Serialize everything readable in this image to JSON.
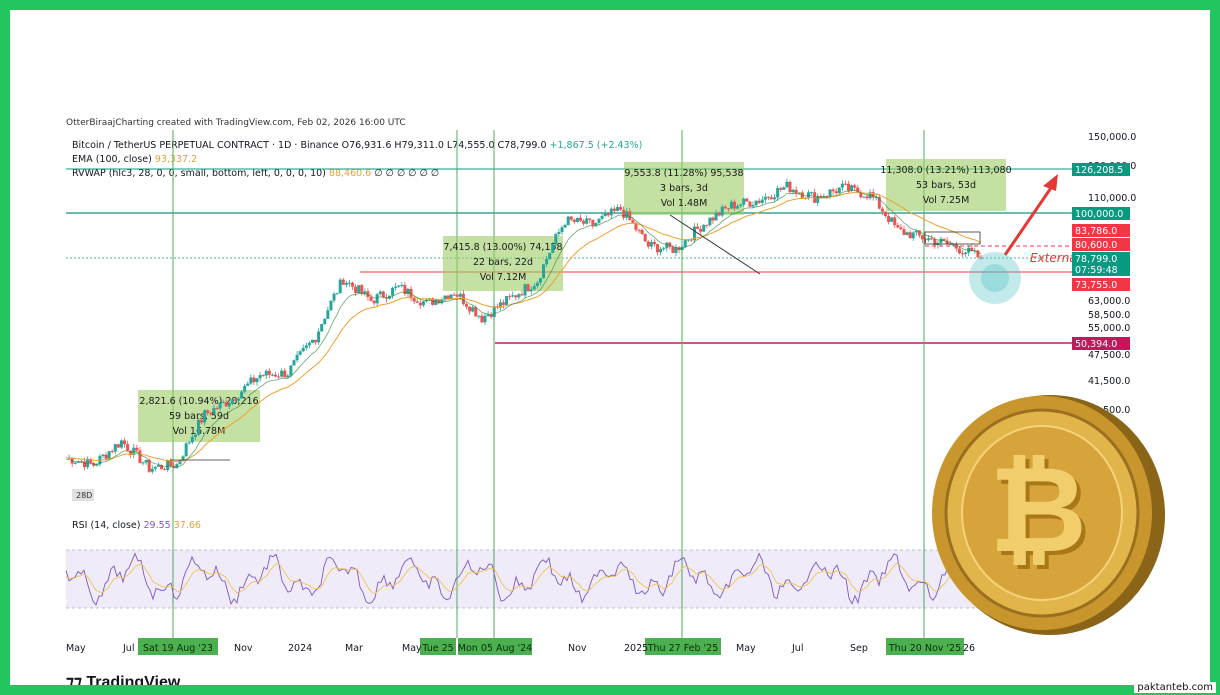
{
  "header": {
    "credit": "OtterBiraajCharting created with TradingView.com, Feb 02, 2026 16:00 UTC",
    "symbol": "Bitcoin / TetherUS PERPETUAL CONTRACT · 1D · Binance",
    "ohlc": {
      "o": "O76,931.6",
      "h": "H79,311.0",
      "l": "L74,555.0",
      "c": "C78,799.0",
      "chg": "+1,867.5 (+2.43%)"
    },
    "ema_label": "EMA (100, close)",
    "ema_value": "93,337.2",
    "rvwap_label": "RVWAP (hlc3, 28, 0, 0, small, bottom, left, 0, 0, 0, 10)",
    "rvwap_value": "88,460.6",
    "rvwap_tail": "∅ ∅ ∅ ∅ ∅ ∅",
    "rsi_label": "RSI (14, close)",
    "rsi_value": "29.55",
    "rsi_ma": "37.66"
  },
  "chart_data": {
    "type": "line",
    "price_axis_ticks": [
      "150,000.0",
      "130,000.0",
      "110,000.0",
      "63,000.0",
      "58,500.0",
      "55,000.0",
      "47,500.0",
      "41,500.0",
      "35,500.0"
    ],
    "price_badges": [
      {
        "label": "126,208.5",
        "color": "#089981"
      },
      {
        "label": "100,000.0",
        "color": "#089981"
      },
      {
        "label": "83,786.0",
        "color": "#f23645"
      },
      {
        "label": "80,600.0",
        "color": "#f23645"
      },
      {
        "label": "78,799.0",
        "color": "#089981"
      },
      {
        "label": "07:59:48",
        "color": "#089981"
      },
      {
        "label": "73,755.0",
        "color": "#f23645"
      },
      {
        "label": "50,394.0",
        "color": "#c2185b"
      }
    ],
    "time_axis_labels": [
      "May",
      "Jul",
      "Nov",
      "2024",
      "Mar",
      "May",
      "Nov",
      "2025",
      "May",
      "Jul",
      "Sep",
      "26"
    ],
    "highlighted_dates": [
      "Sat 19 Aug '23",
      "Tue 25",
      "Mon 05 Aug '24",
      "Thu 27 Feb '25",
      "Thu 20 Nov '25"
    ],
    "measurements": [
      {
        "line1": "2,821.6 (10.94%) 28,216",
        "line2": "59 bars, 59d",
        "line3": "Vol 16.78M"
      },
      {
        "line1": "7,415.8 (13.00%) 74,158",
        "line2": "22 bars, 22d",
        "line3": "Vol 7.12M"
      },
      {
        "line1": "9,553.8 (11.28%) 95,538",
        "line2": "3 bars, 3d",
        "line3": "Vol 1.48M"
      },
      {
        "line1": "11,308.0 (13.21%) 113,080",
        "line2": "53 bars, 53d",
        "line3": "Vol 7.25M"
      }
    ],
    "annotation": "External liq",
    "interval_badge": "28D",
    "price_path": [
      [
        "2023-05",
        27500
      ],
      [
        "2023-06",
        26500
      ],
      [
        "2023-07",
        30000
      ],
      [
        "2023-08",
        26000
      ],
      [
        "2023-09",
        26500
      ],
      [
        "2023-10",
        34500
      ],
      [
        "2023-11",
        37500
      ],
      [
        "2023-12",
        42500
      ],
      [
        "2024-01",
        43000
      ],
      [
        "2024-02",
        52000
      ],
      [
        "2024-03",
        70500
      ],
      [
        "2024-04",
        63000
      ],
      [
        "2024-05",
        67500
      ],
      [
        "2024-06",
        62000
      ],
      [
        "2024-07",
        66000
      ],
      [
        "2024-08",
        57500
      ],
      [
        "2024-09",
        63500
      ],
      [
        "2024-10",
        70000
      ],
      [
        "2024-11",
        96000
      ],
      [
        "2024-12",
        94000
      ],
      [
        "2025-01",
        102000
      ],
      [
        "2025-02",
        84000
      ],
      [
        "2025-03",
        82500
      ],
      [
        "2025-04",
        94500
      ],
      [
        "2025-05",
        104000
      ],
      [
        "2025-06",
        107000
      ],
      [
        "2025-07",
        115000
      ],
      [
        "2025-08",
        108500
      ],
      [
        "2025-09",
        114000
      ],
      [
        "2025-10",
        110000
      ],
      [
        "2025-11",
        91000
      ],
      [
        "2025-12",
        87500
      ],
      [
        "2026-01",
        84000
      ],
      [
        "2026-02",
        78799
      ]
    ]
  },
  "footer": {
    "watermark": "TradingView",
    "site": "paktanteb.com"
  }
}
